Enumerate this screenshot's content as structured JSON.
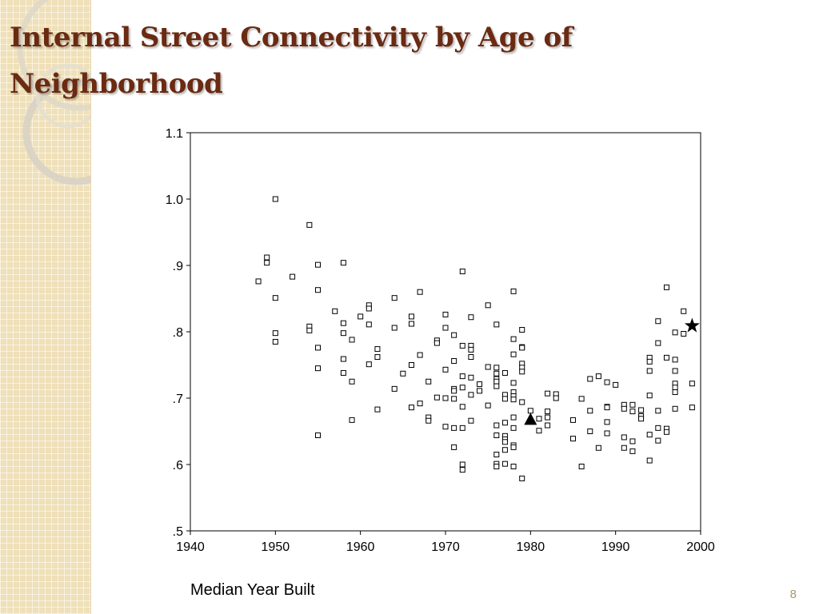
{
  "slide": {
    "title": "Internal Street Connectivity by Age of Neighborhood",
    "page_number": "8"
  },
  "chart_data": {
    "type": "scatter",
    "title": "",
    "xlabel": "Median Year Built",
    "ylabel": "",
    "xlim": [
      1940,
      2000
    ],
    "ylim": [
      0.5,
      1.1
    ],
    "x_ticks": [
      1940,
      1950,
      1960,
      1970,
      1980,
      1990,
      2000
    ],
    "x_tick_labels": [
      "1940",
      "1950",
      "1960",
      "1970",
      "1980",
      "1990",
      "2000"
    ],
    "y_ticks": [
      0.5,
      0.6,
      0.7,
      0.8,
      0.9,
      1.0,
      1.1
    ],
    "y_tick_labels": [
      ".5",
      ".6",
      ".7",
      ".8",
      ".9",
      "1.0",
      "1.1"
    ],
    "grid": false,
    "marker_color": "#000000",
    "series": [
      {
        "marker": "square-open",
        "points": [
          [
            1948,
            0.876
          ],
          [
            1949,
            0.912
          ],
          [
            1949,
            0.904
          ],
          [
            1950,
            1.0
          ],
          [
            1950,
            0.851
          ],
          [
            1950,
            0.798
          ],
          [
            1950,
            0.785
          ],
          [
            1952,
            0.883
          ],
          [
            1954,
            0.961
          ],
          [
            1954,
            0.808
          ],
          [
            1954,
            0.802
          ],
          [
            1955,
            0.901
          ],
          [
            1955,
            0.863
          ],
          [
            1955,
            0.776
          ],
          [
            1955,
            0.745
          ],
          [
            1955,
            0.644
          ],
          [
            1957,
            0.831
          ],
          [
            1958,
            0.904
          ],
          [
            1958,
            0.813
          ],
          [
            1958,
            0.798
          ],
          [
            1958,
            0.759
          ],
          [
            1958,
            0.738
          ],
          [
            1959,
            0.788
          ],
          [
            1959,
            0.725
          ],
          [
            1959,
            0.667
          ],
          [
            1960,
            0.823
          ],
          [
            1961,
            0.84
          ],
          [
            1961,
            0.835
          ],
          [
            1961,
            0.811
          ],
          [
            1961,
            0.751
          ],
          [
            1962,
            0.774
          ],
          [
            1962,
            0.762
          ],
          [
            1962,
            0.683
          ],
          [
            1964,
            0.851
          ],
          [
            1964,
            0.806
          ],
          [
            1964,
            0.714
          ],
          [
            1965,
            0.737
          ],
          [
            1966,
            0.823
          ],
          [
            1966,
            0.812
          ],
          [
            1966,
            0.75
          ],
          [
            1966,
            0.686
          ],
          [
            1967,
            0.86
          ],
          [
            1967,
            0.765
          ],
          [
            1967,
            0.692
          ],
          [
            1968,
            0.725
          ],
          [
            1968,
            0.671
          ],
          [
            1968,
            0.666
          ],
          [
            1969,
            0.787
          ],
          [
            1969,
            0.783
          ],
          [
            1969,
            0.701
          ],
          [
            1970,
            0.826
          ],
          [
            1970,
            0.806
          ],
          [
            1970,
            0.743
          ],
          [
            1970,
            0.7
          ],
          [
            1970,
            0.657
          ],
          [
            1971,
            0.795
          ],
          [
            1971,
            0.756
          ],
          [
            1971,
            0.714
          ],
          [
            1971,
            0.711
          ],
          [
            1971,
            0.699
          ],
          [
            1971,
            0.655
          ],
          [
            1971,
            0.626
          ],
          [
            1972,
            0.891
          ],
          [
            1972,
            0.779
          ],
          [
            1972,
            0.733
          ],
          [
            1972,
            0.716
          ],
          [
            1972,
            0.687
          ],
          [
            1972,
            0.655
          ],
          [
            1972,
            0.6
          ],
          [
            1972,
            0.592
          ],
          [
            1973,
            0.822
          ],
          [
            1973,
            0.779
          ],
          [
            1973,
            0.773
          ],
          [
            1973,
            0.762
          ],
          [
            1973,
            0.731
          ],
          [
            1973,
            0.705
          ],
          [
            1973,
            0.666
          ],
          [
            1974,
            0.721
          ],
          [
            1974,
            0.711
          ],
          [
            1975,
            0.84
          ],
          [
            1975,
            0.747
          ],
          [
            1975,
            0.689
          ],
          [
            1976,
            0.811
          ],
          [
            1976,
            0.746
          ],
          [
            1976,
            0.737
          ],
          [
            1976,
            0.729
          ],
          [
            1976,
            0.725
          ],
          [
            1976,
            0.718
          ],
          [
            1976,
            0.659
          ],
          [
            1976,
            0.644
          ],
          [
            1976,
            0.615
          ],
          [
            1976,
            0.601
          ],
          [
            1976,
            0.597
          ],
          [
            1977,
            0.738
          ],
          [
            1977,
            0.705
          ],
          [
            1977,
            0.699
          ],
          [
            1977,
            0.663
          ],
          [
            1977,
            0.643
          ],
          [
            1977,
            0.638
          ],
          [
            1977,
            0.634
          ],
          [
            1977,
            0.622
          ],
          [
            1977,
            0.601
          ],
          [
            1978,
            0.861
          ],
          [
            1978,
            0.789
          ],
          [
            1978,
            0.766
          ],
          [
            1978,
            0.723
          ],
          [
            1978,
            0.709
          ],
          [
            1978,
            0.703
          ],
          [
            1978,
            0.698
          ],
          [
            1978,
            0.671
          ],
          [
            1978,
            0.655
          ],
          [
            1978,
            0.629
          ],
          [
            1978,
            0.626
          ],
          [
            1978,
            0.597
          ],
          [
            1979,
            0.803
          ],
          [
            1979,
            0.777
          ],
          [
            1979,
            0.776
          ],
          [
            1979,
            0.752
          ],
          [
            1979,
            0.746
          ],
          [
            1979,
            0.74
          ],
          [
            1979,
            0.694
          ],
          [
            1979,
            0.579
          ],
          [
            1980,
            0.681
          ],
          [
            1981,
            0.669
          ],
          [
            1981,
            0.651
          ],
          [
            1982,
            0.707
          ],
          [
            1982,
            0.68
          ],
          [
            1982,
            0.671
          ],
          [
            1982,
            0.659
          ],
          [
            1983,
            0.706
          ],
          [
            1983,
            0.7
          ],
          [
            1985,
            0.667
          ],
          [
            1985,
            0.639
          ],
          [
            1986,
            0.699
          ],
          [
            1986,
            0.597
          ],
          [
            1987,
            0.729
          ],
          [
            1987,
            0.681
          ],
          [
            1987,
            0.65
          ],
          [
            1988,
            0.733
          ],
          [
            1988,
            0.625
          ],
          [
            1989,
            0.724
          ],
          [
            1989,
            0.687
          ],
          [
            1989,
            0.686
          ],
          [
            1989,
            0.664
          ],
          [
            1989,
            0.647
          ],
          [
            1990,
            0.72
          ],
          [
            1991,
            0.69
          ],
          [
            1991,
            0.684
          ],
          [
            1991,
            0.641
          ],
          [
            1991,
            0.625
          ],
          [
            1992,
            0.69
          ],
          [
            1992,
            0.68
          ],
          [
            1992,
            0.635
          ],
          [
            1992,
            0.62
          ],
          [
            1993,
            0.682
          ],
          [
            1993,
            0.673
          ],
          [
            1993,
            0.669
          ],
          [
            1994,
            0.761
          ],
          [
            1994,
            0.755
          ],
          [
            1994,
            0.741
          ],
          [
            1994,
            0.704
          ],
          [
            1994,
            0.645
          ],
          [
            1994,
            0.606
          ],
          [
            1995,
            0.816
          ],
          [
            1995,
            0.783
          ],
          [
            1995,
            0.681
          ],
          [
            1995,
            0.655
          ],
          [
            1995,
            0.636
          ],
          [
            1996,
            0.867
          ],
          [
            1996,
            0.761
          ],
          [
            1996,
            0.654
          ],
          [
            1996,
            0.649
          ],
          [
            1997,
            0.799
          ],
          [
            1997,
            0.758
          ],
          [
            1997,
            0.741
          ],
          [
            1997,
            0.722
          ],
          [
            1997,
            0.716
          ],
          [
            1997,
            0.709
          ],
          [
            1997,
            0.684
          ],
          [
            1998,
            0.831
          ],
          [
            1998,
            0.797
          ],
          [
            1999,
            0.722
          ],
          [
            1999,
            0.686
          ]
        ]
      },
      {
        "marker": "triangle-filled",
        "points": [
          [
            1980,
            0.667
          ]
        ]
      },
      {
        "marker": "star-filled",
        "points": [
          [
            1999,
            0.809
          ]
        ]
      }
    ]
  }
}
